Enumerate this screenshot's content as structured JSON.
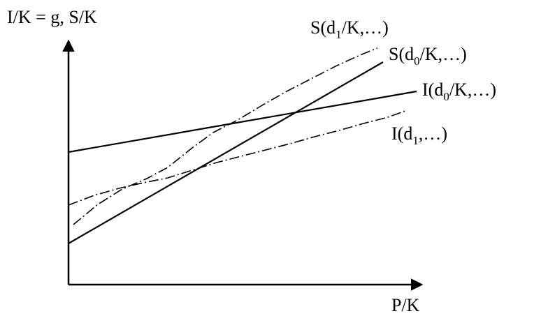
{
  "axes": {
    "y_label": "I/K = g, S/K",
    "x_label": "P/K"
  },
  "curves": {
    "S_d1": {
      "prefix": "S(d",
      "sub": "1",
      "suffix": "/K,…)",
      "style": "dash-dot"
    },
    "S_d0": {
      "prefix": "S(d",
      "sub": "0",
      "suffix": "/K,…)",
      "style": "solid"
    },
    "I_d0": {
      "prefix": "I(d",
      "sub": "0",
      "suffix": "/K,…)",
      "style": "solid"
    },
    "I_d1": {
      "prefix": "I(d",
      "sub": "1",
      "suffix": ",…)",
      "style": "dash-dot"
    }
  },
  "colors": {
    "line": "#000000",
    "background": "#ffffff"
  }
}
